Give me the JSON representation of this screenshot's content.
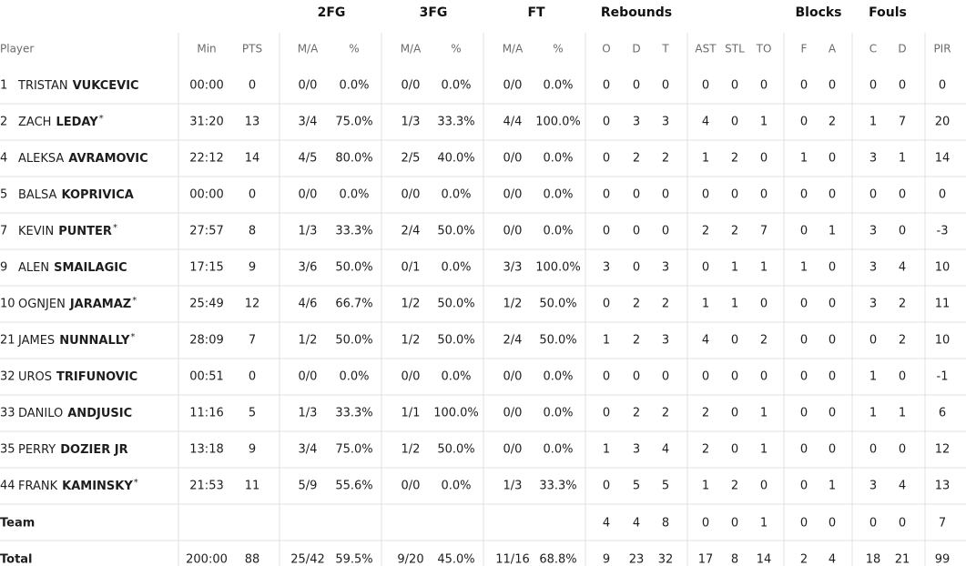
{
  "group_headers": [
    "2FG",
    "3FG",
    "FT",
    "Rebounds",
    "Blocks",
    "Fouls"
  ],
  "columns": [
    "Player",
    "Min",
    "PTS",
    "M/A",
    "%",
    "M/A",
    "%",
    "M/A",
    "%",
    "O",
    "D",
    "T",
    "AST",
    "STL",
    "TO",
    "F",
    "A",
    "C",
    "D",
    "PIR"
  ],
  "players": [
    {
      "number": 1,
      "first": "TRISTAN",
      "last": "VUKCEVIC",
      "stats": [
        "00:00",
        0,
        "0/0",
        "0.0%",
        "0/0",
        "0.0%",
        "0/0",
        "0.0%",
        0,
        0,
        0,
        0,
        0,
        0,
        0,
        0,
        0,
        0,
        0
      ]
    },
    {
      "number": 2,
      "first": "ZACH",
      "last": "LEDAY",
      "starter": "*",
      "stats": [
        "31:20",
        13,
        "3/4",
        "75.0%",
        "1/3",
        "33.3%",
        "4/4",
        "100.0%",
        0,
        3,
        3,
        4,
        0,
        1,
        0,
        2,
        1,
        7,
        20
      ]
    },
    {
      "number": 4,
      "first": "ALEKSA",
      "last": "AVRAMOVIC",
      "stats": [
        "22:12",
        14,
        "4/5",
        "80.0%",
        "2/5",
        "40.0%",
        "0/0",
        "0.0%",
        0,
        2,
        2,
        1,
        2,
        0,
        1,
        0,
        3,
        1,
        14
      ]
    },
    {
      "number": 5,
      "first": "BALSA",
      "last": "KOPRIVICA",
      "stats": [
        "00:00",
        0,
        "0/0",
        "0.0%",
        "0/0",
        "0.0%",
        "0/0",
        "0.0%",
        0,
        0,
        0,
        0,
        0,
        0,
        0,
        0,
        0,
        0,
        0
      ]
    },
    {
      "number": 7,
      "first": "KEVIN",
      "last": "PUNTER",
      "starter": "*",
      "stats": [
        "27:57",
        8,
        "1/3",
        "33.3%",
        "2/4",
        "50.0%",
        "0/0",
        "0.0%",
        0,
        0,
        0,
        2,
        2,
        7,
        0,
        1,
        3,
        0,
        -3
      ]
    },
    {
      "number": 9,
      "first": "ALEN",
      "last": "SMAILAGIC",
      "stats": [
        "17:15",
        9,
        "3/6",
        "50.0%",
        "0/1",
        "0.0%",
        "3/3",
        "100.0%",
        3,
        0,
        3,
        0,
        1,
        1,
        1,
        0,
        3,
        4,
        10
      ]
    },
    {
      "number": 10,
      "first": "OGNJEN",
      "last": "JARAMAZ",
      "starter": "*",
      "stats": [
        "25:49",
        12,
        "4/6",
        "66.7%",
        "1/2",
        "50.0%",
        "1/2",
        "50.0%",
        0,
        2,
        2,
        1,
        1,
        0,
        0,
        0,
        3,
        2,
        11
      ]
    },
    {
      "number": 21,
      "first": "JAMES",
      "last": "NUNNALLY",
      "starter": "*",
      "stats": [
        "28:09",
        7,
        "1/2",
        "50.0%",
        "1/2",
        "50.0%",
        "2/4",
        "50.0%",
        1,
        2,
        3,
        4,
        0,
        2,
        0,
        0,
        0,
        2,
        10
      ]
    },
    {
      "number": 32,
      "first": "UROS",
      "last": "TRIFUNOVIC",
      "stats": [
        "00:51",
        0,
        "0/0",
        "0.0%",
        "0/0",
        "0.0%",
        "0/0",
        "0.0%",
        0,
        0,
        0,
        0,
        0,
        0,
        0,
        0,
        1,
        0,
        -1
      ]
    },
    {
      "number": 33,
      "first": "DANILO",
      "last": "ANDJUSIC",
      "stats": [
        "11:16",
        5,
        "1/3",
        "33.3%",
        "1/1",
        "100.0%",
        "0/0",
        "0.0%",
        0,
        2,
        2,
        2,
        0,
        1,
        0,
        0,
        1,
        1,
        6
      ]
    },
    {
      "number": 35,
      "first": "PERRY",
      "last": "DOZIER JR",
      "stats": [
        "13:18",
        9,
        "3/4",
        "75.0%",
        "1/2",
        "50.0%",
        "0/0",
        "0.0%",
        1,
        3,
        4,
        2,
        0,
        1,
        0,
        0,
        0,
        0,
        12
      ]
    },
    {
      "number": 44,
      "first": "FRANK",
      "last": "KAMINSKY",
      "starter": "*",
      "stats": [
        "21:53",
        11,
        "5/9",
        "55.6%",
        "0/0",
        "0.0%",
        "1/3",
        "33.3%",
        0,
        5,
        5,
        1,
        2,
        0,
        0,
        1,
        3,
        4,
        13
      ]
    }
  ],
  "team": {
    "label": "Team",
    "stats": [
      null,
      null,
      null,
      null,
      null,
      null,
      null,
      null,
      4,
      4,
      8,
      0,
      0,
      1,
      0,
      0,
      0,
      0,
      7
    ]
  },
  "total": {
    "label": "Total",
    "stats": [
      "200:00",
      88,
      "25/42",
      "59.5%",
      "9/20",
      "45.0%",
      "11/16",
      "68.8%",
      9,
      23,
      32,
      17,
      8,
      14,
      2,
      4,
      18,
      21,
      99
    ]
  }
}
